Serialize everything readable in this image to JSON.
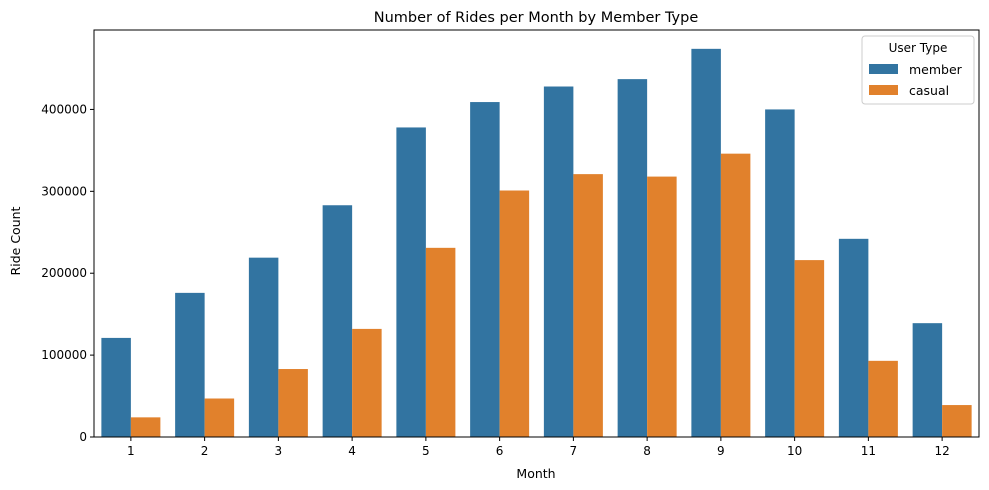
{
  "chart_data": {
    "type": "bar",
    "title": "Number of Rides per Month by Member Type",
    "xlabel": "Month",
    "ylabel": "Ride Count",
    "categories": [
      "1",
      "2",
      "3",
      "4",
      "5",
      "6",
      "7",
      "8",
      "9",
      "10",
      "11",
      "12"
    ],
    "series": [
      {
        "name": "member",
        "color": "#3274a1",
        "values": [
          121000,
          176000,
          219000,
          283000,
          378000,
          409000,
          428000,
          437000,
          474000,
          400000,
          242000,
          139000
        ]
      },
      {
        "name": "casual",
        "color": "#e1812c",
        "values": [
          24000,
          47000,
          83000,
          132000,
          231000,
          301000,
          321000,
          318000,
          346000,
          216000,
          93000,
          39000
        ]
      }
    ],
    "ylim": [
      0,
      497000
    ],
    "yticks": [
      0,
      100000,
      200000,
      300000,
      400000
    ],
    "ytick_labels": [
      "0",
      "100000",
      "200000",
      "300000",
      "400000"
    ],
    "legend": {
      "title": "User Type",
      "placement": "top-right"
    },
    "grid": false
  }
}
